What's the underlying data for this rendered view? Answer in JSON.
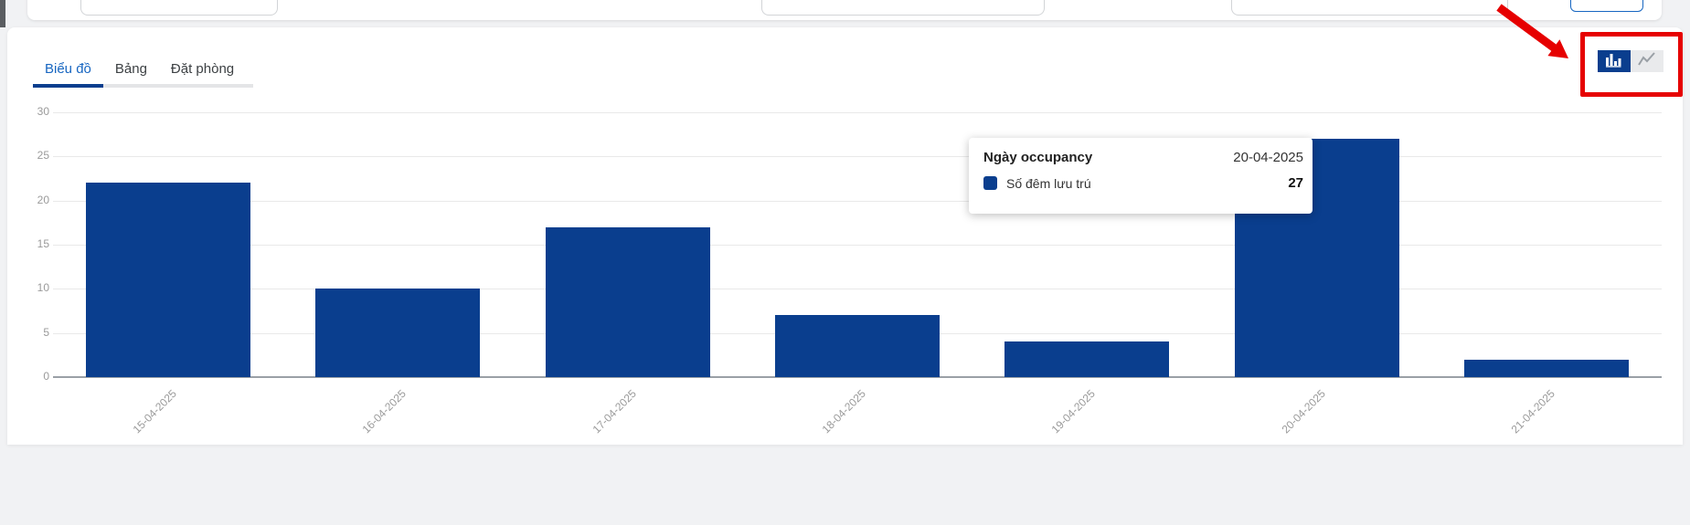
{
  "colors": {
    "bar": "#0a3e8e",
    "accent": "#1766c1",
    "tab_inactive": "#3c4043",
    "annotation_red": "#e60000",
    "axis_label": "#9a9a9a",
    "grid_line": "#e9e9e9",
    "axis_line": "#9aa0a6"
  },
  "tabs": [
    {
      "label": "Biểu đồ",
      "active": true
    },
    {
      "label": "Bảng",
      "active": false
    },
    {
      "label": "Đặt phòng",
      "active": false
    }
  ],
  "chart_toggle": {
    "options": [
      {
        "icon": "bar-chart-icon",
        "active": true
      },
      {
        "icon": "line-chart-icon",
        "active": false
      }
    ]
  },
  "tooltip": {
    "title": "Ngày occupancy",
    "date": "20-04-2025",
    "series_label": "Số đêm lưu trú",
    "value": "27"
  },
  "chart_data": {
    "type": "bar",
    "title": "",
    "categories": [
      "15-04-2025",
      "16-04-2025",
      "17-04-2025",
      "18-04-2025",
      "19-04-2025",
      "20-04-2025",
      "21-04-2025"
    ],
    "series": [
      {
        "name": "Số đêm lưu trú",
        "values": [
          22,
          10,
          17,
          7,
          4,
          27,
          2
        ]
      }
    ],
    "xlabel": "",
    "ylabel": "",
    "ylim": [
      0,
      30
    ],
    "yticks": [
      0,
      5,
      10,
      15,
      20,
      25,
      30
    ],
    "grid": true,
    "x_label_rotation": 45,
    "bar_color": "#0a3e8e",
    "legend_position": "none",
    "highlighted_category": "20-04-2025",
    "highlighted_value": 27
  }
}
